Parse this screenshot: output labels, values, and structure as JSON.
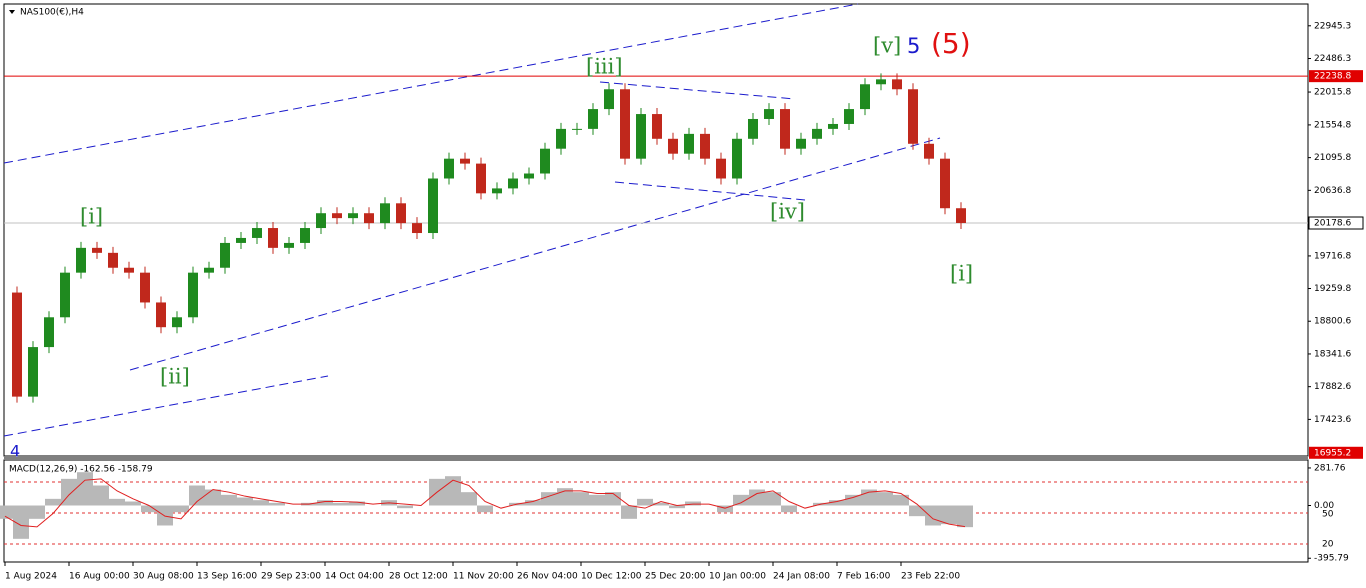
{
  "chart_data": [
    {
      "type": "candles",
      "title": "NAS100(€),H4",
      "categories": [
        "1 Aug 2024",
        null,
        null,
        null,
        "16 Aug 00:00",
        null,
        null,
        null,
        "30 Aug 08:00",
        null,
        null,
        null,
        "13 Sep 16:00",
        null,
        null,
        null,
        "29 Sep 23:00",
        null,
        null,
        null,
        "14 Oct 04:00",
        null,
        null,
        null,
        "28 Oct 12:00",
        null,
        null,
        null,
        "11 Nov 20:00",
        null,
        null,
        null,
        "26 Nov 04:00",
        null,
        null,
        null,
        "10 Dec 12:00",
        null,
        null,
        null,
        "25 Dec 20:00",
        null,
        null,
        null,
        "10 Jan 00:00",
        null,
        null,
        null,
        "24 Jan 08:00",
        null,
        null,
        null,
        "7 Feb 16:00",
        null,
        null,
        null,
        "23 Feb 22:00",
        null,
        null,
        null,
        null
      ],
      "values": [
        19203,
        17743,
        18438,
        18856,
        19482,
        19830,
        19760,
        19551,
        19482,
        19064,
        18717,
        18856,
        19482,
        19551,
        19899,
        19969,
        20108,
        19830,
        19899,
        20108,
        20316,
        20247,
        20316,
        20177,
        20455,
        20177,
        20038,
        20803,
        21081,
        21012,
        20595,
        20664,
        20803,
        20873,
        21221,
        21499,
        21499,
        21777,
        22055,
        21081,
        21707,
        21360,
        21151,
        21429,
        21081,
        20803,
        21360,
        21638,
        21777,
        21221,
        21360,
        21499,
        21568,
        21777,
        22125,
        22194,
        22055,
        21290,
        21081,
        20386,
        20179
      ],
      "up_color": "#1f8a1f",
      "down_color": "#c0281c",
      "ylim": [
        16910,
        23251
      ],
      "yticks": [
        22945.3,
        22486.3,
        22015.8,
        21554.8,
        21095.8,
        20636.8,
        19716.8,
        19259.8,
        18800.6,
        18341.6,
        17882.6,
        17423.6
      ],
      "levels": [
        22238.8,
        20178.6,
        16955.2
      ],
      "level_colors": [
        "#e00000",
        "#c0c0c0",
        "#e00000"
      ],
      "annotations": [
        "[i]",
        "[ii]",
        "[iii]",
        "[iv]",
        "[v]",
        "5",
        "(5)",
        "[i]",
        "4"
      ]
    },
    {
      "type": "macd",
      "title": "MACD(12,26,9) -162.56 -158.79",
      "series": [
        {
          "color": "#b8b8b8",
          "values": [
            -100,
            -250,
            -100,
            50,
            200,
            250,
            150,
            50,
            30,
            -50,
            -150,
            -50,
            150,
            120,
            80,
            60,
            40,
            20,
            0,
            20,
            40,
            20,
            30,
            0,
            40,
            -20,
            0,
            200,
            220,
            100,
            -50,
            0,
            20,
            40,
            100,
            130,
            100,
            80,
            100,
            -100,
            50,
            20,
            -20,
            30,
            0,
            -50,
            80,
            120,
            100,
            -50,
            0,
            20,
            40,
            80,
            120,
            100,
            80,
            -80,
            -150,
            -140,
            -162.56
          ]
        },
        {
          "color": "#e02020",
          "values": [
            -80,
            -150,
            -160,
            -60,
            80,
            190,
            200,
            110,
            50,
            0,
            -80,
            -100,
            30,
            120,
            100,
            70,
            50,
            30,
            10,
            10,
            30,
            30,
            25,
            10,
            20,
            10,
            0,
            100,
            190,
            150,
            30,
            -20,
            10,
            30,
            70,
            110,
            110,
            90,
            90,
            0,
            -20,
            30,
            0,
            10,
            10,
            -20,
            20,
            90,
            110,
            30,
            -20,
            10,
            30,
            60,
            100,
            110,
            90,
            10,
            -100,
            -140,
            -158.79
          ]
        }
      ],
      "ylim": [
        -424,
        334
      ],
      "yticks": [
        281.76,
        {
          "value": 0,
          "label": "0.00"
        },
        -395.79
      ],
      "level_labels": [
        "50",
        "20"
      ]
    }
  ]
}
